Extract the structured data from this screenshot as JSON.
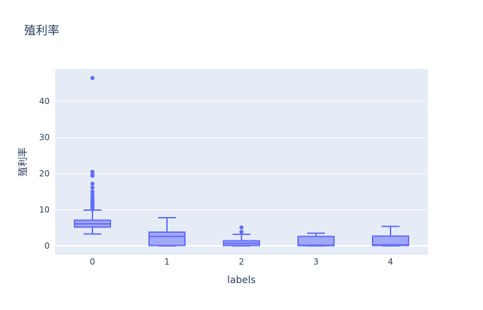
{
  "chart_data": {
    "type": "box",
    "title": "殖利率",
    "xlabel": "labels",
    "ylabel": "殖利率",
    "categories": [
      "0",
      "1",
      "2",
      "3",
      "4"
    ],
    "ylim": [
      -2.5,
      49
    ],
    "yticks": [
      0,
      10,
      20,
      30,
      40
    ],
    "grid": true,
    "colors": {
      "plot_bg": "#e5ecf6",
      "box_line": "#636efa",
      "box_fill": "#a2a8f8",
      "grid": "#ffffff",
      "text": "#2a3f5f"
    },
    "boxes": [
      {
        "category": "0",
        "whisker_low": 3.3,
        "q1": 5.2,
        "median": 6.1,
        "q3": 7.1,
        "whisker_high": 9.9,
        "outliers": [
          10.1,
          10.4,
          10.8,
          11.2,
          11.6,
          12.0,
          12.4,
          12.9,
          13.5,
          14.2,
          15.0,
          16.1,
          17.2,
          19.4,
          19.8,
          20.5,
          46.5
        ]
      },
      {
        "category": "1",
        "whisker_low": 0.0,
        "q1": 0.1,
        "median": 2.6,
        "q3": 3.8,
        "whisker_high": 7.8,
        "outliers": []
      },
      {
        "category": "2",
        "whisker_low": 0.0,
        "q1": 0.1,
        "median": 0.7,
        "q3": 1.4,
        "whisker_high": 3.2,
        "outliers": [
          3.9,
          5.1
        ]
      },
      {
        "category": "3",
        "whisker_low": 0.0,
        "q1": 0.05,
        "median": 0.2,
        "q3": 2.6,
        "whisker_high": 3.5,
        "outliers": []
      },
      {
        "category": "4",
        "whisker_low": 0.0,
        "q1": 0.1,
        "median": 0.3,
        "q3": 2.7,
        "whisker_high": 5.4,
        "outliers": []
      }
    ]
  }
}
